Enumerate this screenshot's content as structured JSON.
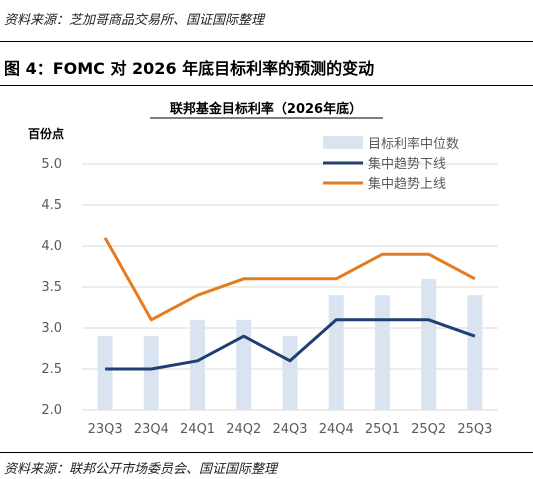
{
  "source_top": "资料来源：芝加哥商品交易所、国证国际整理",
  "figure_title": "图 4：FOMC 对 2026 年底目标利率的预测的变动",
  "source_bottom": "资料来源：联邦公开市场委员会、国证国际整理",
  "chart_data": {
    "type": "bar",
    "title": "联邦基金目标利率（2026年底）",
    "ylabel": "百份点",
    "xlabel": "",
    "ylim": [
      2.0,
      5.0
    ],
    "yticks": [
      "2.0",
      "2.5",
      "3.0",
      "3.5",
      "4.0",
      "4.5",
      "5.0"
    ],
    "categories": [
      "23Q3",
      "23Q4",
      "24Q1",
      "24Q2",
      "24Q3",
      "24Q4",
      "25Q1",
      "25Q2",
      "25Q3"
    ],
    "grid": true,
    "legend_position": "top-right",
    "series": [
      {
        "name": "目标利率中位数",
        "type": "bar",
        "color": "#dae3f0",
        "values": [
          2.9,
          2.9,
          3.1,
          3.1,
          2.9,
          3.4,
          3.4,
          3.6,
          3.4
        ]
      },
      {
        "name": "集中趋势下线",
        "type": "line",
        "color": "#1f3f73",
        "values": [
          2.5,
          2.5,
          2.6,
          2.9,
          2.6,
          3.1,
          3.1,
          3.1,
          2.9
        ]
      },
      {
        "name": "集中趋势上线",
        "type": "line",
        "color": "#e57a1e",
        "values": [
          4.1,
          3.1,
          3.4,
          3.6,
          3.6,
          3.6,
          3.9,
          3.9,
          3.6
        ]
      }
    ]
  }
}
